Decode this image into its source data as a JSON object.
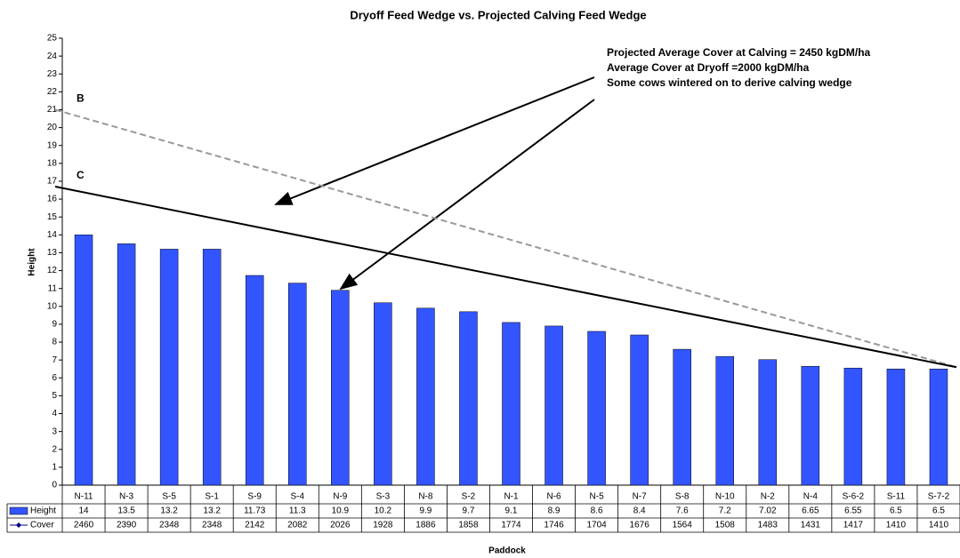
{
  "chart_data": {
    "type": "bar",
    "title": "Dryoff Feed Wedge vs. Projected Calving Feed Wedge",
    "x_label": "Paddock",
    "y_label": "Height",
    "categories": [
      "N-11",
      "N-3",
      "S-5",
      "S-1",
      "S-9",
      "S-4",
      "N-9",
      "S-3",
      "N-8",
      "S-2",
      "N-1",
      "N-6",
      "N-5",
      "N-7",
      "S-8",
      "N-10",
      "N-2",
      "N-4",
      "S-6-2",
      "S-11",
      "S-7-2"
    ],
    "series": [
      {
        "name": "Height",
        "color": "#3355ff",
        "values": [
          14,
          13.5,
          13.2,
          13.2,
          11.73,
          11.3,
          10.9,
          10.2,
          9.9,
          9.7,
          9.1,
          8.9,
          8.6,
          8.4,
          7.6,
          7.2,
          7.02,
          6.65,
          6.55,
          6.5,
          6.5
        ]
      },
      {
        "name": "Cover",
        "color": "#000080",
        "values": [
          2460,
          2390,
          2348,
          2348,
          2142,
          2082,
          2026,
          1928,
          1886,
          1858,
          1774,
          1746,
          1704,
          1676,
          1564,
          1508,
          1483,
          1431,
          1417,
          1410,
          1410
        ]
      }
    ],
    "ylim": [
      0,
      25
    ],
    "yticks": [
      0,
      1,
      2,
      3,
      4,
      5,
      6,
      7,
      8,
      9,
      10,
      11,
      12,
      13,
      14,
      15,
      16,
      17,
      18,
      19,
      20,
      21,
      22,
      23,
      24,
      25
    ],
    "reference_lines": [
      {
        "label": "B",
        "values": [
          21,
          6.6
        ],
        "color": "#999999",
        "dashed": true
      },
      {
        "label": "C",
        "values": [
          16.7,
          6.6
        ],
        "color": "#000000",
        "dashed": false
      }
    ],
    "annotations": [
      "Projected Average Cover at Calving = 2450 kgDM/ha",
      "Average Cover at Dryoff =2000 kgDM/ha",
      "Some cows wintered on to derive calving wedge"
    ]
  }
}
